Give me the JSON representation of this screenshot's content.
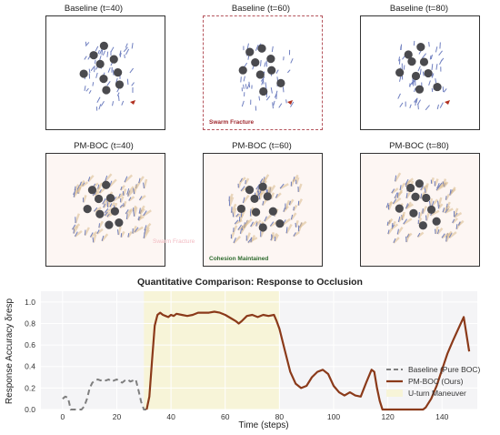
{
  "panels": {
    "row1": [
      {
        "title": "Baseline (t=40)"
      },
      {
        "title": "Baseline (t=60)",
        "annotation": "Swarm Fracture"
      },
      {
        "title": "Baseline (t=80)"
      }
    ],
    "row2": [
      {
        "title": "PM-BOC (t=40)",
        "annotation": "Swarm Fracture"
      },
      {
        "title": "PM-BOC (t=60)",
        "annotation": "Cohesion Maintained"
      },
      {
        "title": "PM-BOC (t=80)"
      }
    ]
  },
  "colors": {
    "baseline": "#7f7f7f",
    "pmboc": "#8b3a1a",
    "uturn": "#f7f4d8",
    "fracture": "#a0282e",
    "cohesion": "#2e6b2e",
    "obstacle": "#4a4a4e",
    "agent_blue": "#6f7fc0",
    "agent_tan": "#d9b98a"
  },
  "chart_data": {
    "type": "line",
    "title": "Quantitative Comparison: Response to Occlusion",
    "xlabel": "Time (steps)",
    "ylabel": "Response Accuracy δresp",
    "xlim": [
      -8,
      153
    ],
    "ylim": [
      0,
      1.1
    ],
    "xticks": [
      0,
      20,
      40,
      60,
      80,
      100,
      120,
      140
    ],
    "yticks": [
      0.0,
      0.2,
      0.4,
      0.6,
      0.8,
      1.0
    ],
    "shaded_region": {
      "x": [
        30,
        80
      ],
      "label": "U-turn Maneuver"
    },
    "legend_position": "lower-right",
    "series": [
      {
        "name": "Baseline (Pure BOC)",
        "style": "dashed",
        "x": [
          0,
          1,
          2,
          3,
          4,
          5,
          6,
          7,
          8,
          9,
          10,
          11,
          12,
          13,
          14,
          15,
          16,
          17,
          18,
          19,
          20,
          21,
          22,
          23,
          24,
          25,
          26,
          27,
          28,
          29,
          30,
          31
        ],
        "y": [
          0.1,
          0.12,
          0.11,
          0.0,
          0.0,
          0.0,
          0.0,
          0.0,
          0.03,
          0.1,
          0.2,
          0.25,
          0.27,
          0.28,
          0.27,
          0.28,
          0.27,
          0.28,
          0.26,
          0.27,
          0.28,
          0.26,
          0.25,
          0.27,
          0.28,
          0.26,
          0.27,
          0.28,
          0.18,
          0.07,
          0.0,
          0.0
        ]
      },
      {
        "name": "PM-BOC (Ours)",
        "style": "solid",
        "x": [
          31,
          32,
          33,
          34,
          35,
          36,
          37,
          38,
          39,
          40,
          41,
          42,
          44,
          46,
          48,
          50,
          52,
          54,
          56,
          58,
          60,
          62,
          64,
          65,
          66,
          68,
          70,
          72,
          74,
          76,
          78,
          79,
          80,
          82,
          84,
          86,
          88,
          90,
          92,
          94,
          96,
          98,
          100,
          102,
          104,
          106,
          108,
          110,
          112,
          114,
          115,
          116,
          117,
          118,
          119,
          120,
          122,
          124,
          126,
          128,
          130,
          132,
          133,
          134,
          136,
          138,
          140,
          142,
          144,
          146,
          148,
          149,
          150
        ],
        "y": [
          0.0,
          0.12,
          0.45,
          0.78,
          0.88,
          0.9,
          0.88,
          0.87,
          0.86,
          0.88,
          0.87,
          0.89,
          0.88,
          0.87,
          0.88,
          0.9,
          0.9,
          0.9,
          0.91,
          0.9,
          0.88,
          0.85,
          0.82,
          0.8,
          0.82,
          0.87,
          0.88,
          0.86,
          0.88,
          0.87,
          0.88,
          0.82,
          0.75,
          0.55,
          0.35,
          0.24,
          0.2,
          0.22,
          0.3,
          0.35,
          0.37,
          0.33,
          0.22,
          0.16,
          0.13,
          0.16,
          0.13,
          0.12,
          0.25,
          0.37,
          0.35,
          0.2,
          0.08,
          0.0,
          0.0,
          0.0,
          0.0,
          0.0,
          0.0,
          0.0,
          0.0,
          0.0,
          0.0,
          0.02,
          0.1,
          0.22,
          0.37,
          0.52,
          0.64,
          0.75,
          0.86,
          0.7,
          0.54
        ]
      }
    ]
  }
}
